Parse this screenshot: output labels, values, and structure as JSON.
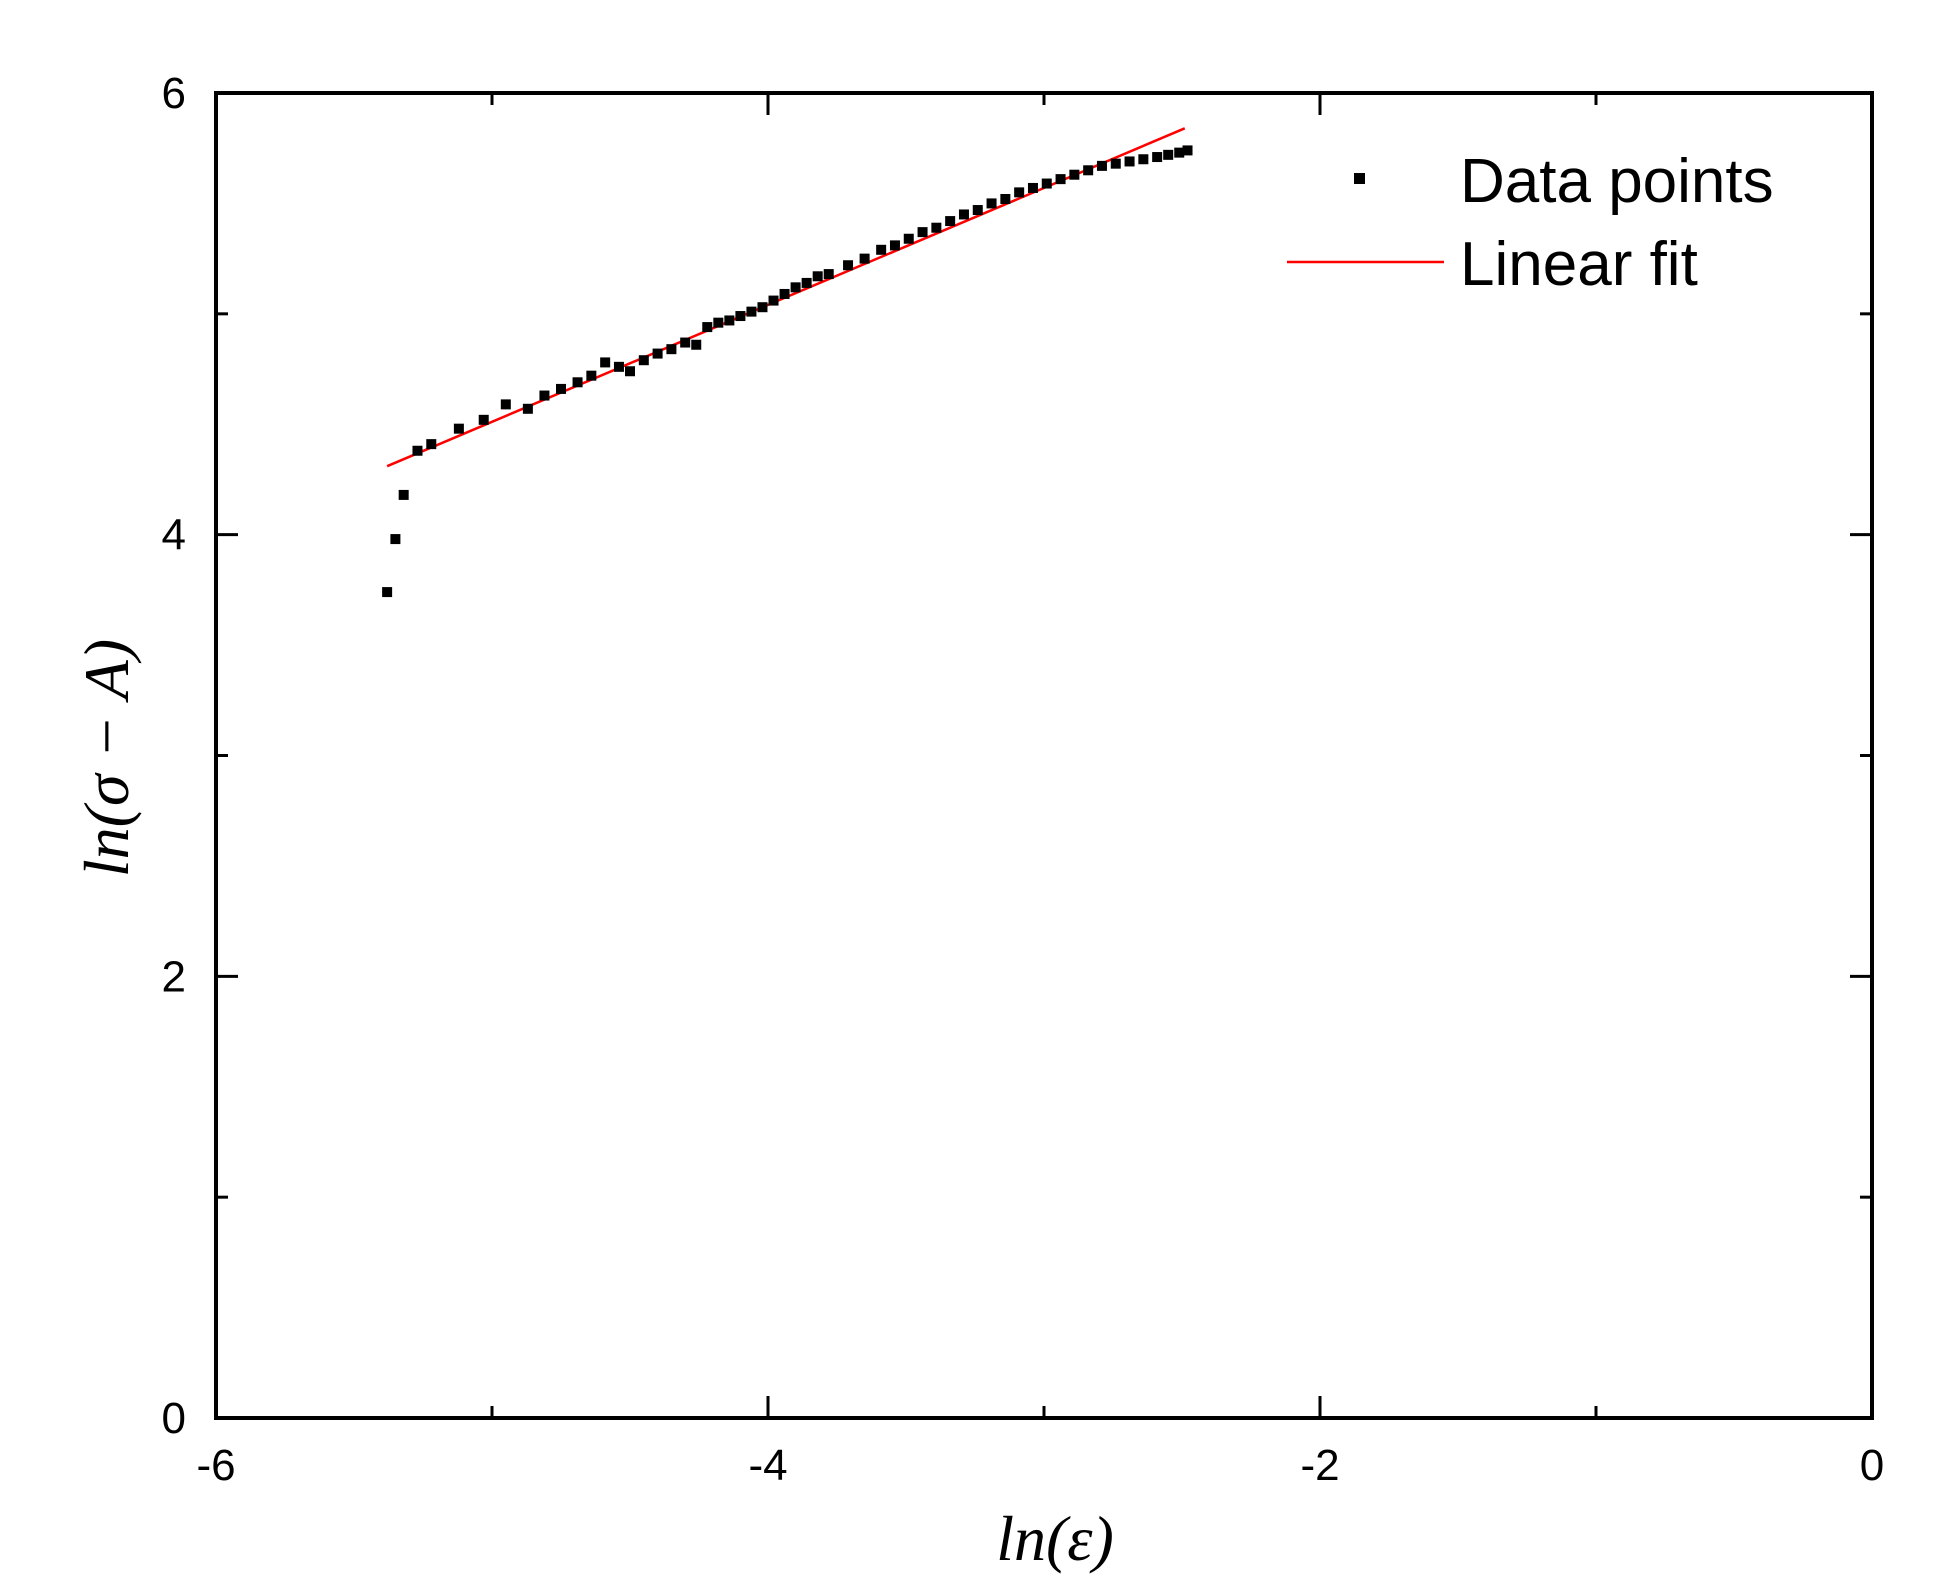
{
  "chart_data": {
    "type": "scatter",
    "xlabel": "ln(ε)",
    "ylabel": "ln(σ − A)",
    "xlim": [
      -6,
      0
    ],
    "ylim": [
      0,
      6
    ],
    "x_ticks": [
      -6,
      -4,
      -2,
      0
    ],
    "y_ticks": [
      0,
      2,
      4,
      6
    ],
    "x_tick_labels": [
      "-6",
      "-4",
      "-2",
      "0"
    ],
    "y_tick_labels": [
      "0",
      "2",
      "4",
      "6"
    ],
    "legend_position": "top-right",
    "grid": false,
    "series": [
      {
        "name": "Data points",
        "kind": "scatter",
        "marker": "square",
        "color": "#000000",
        "points": [
          [
            -5.38,
            3.74
          ],
          [
            -5.35,
            3.98
          ],
          [
            -5.32,
            4.18
          ],
          [
            -5.27,
            4.38
          ],
          [
            -5.22,
            4.41
          ],
          [
            -5.12,
            4.48
          ],
          [
            -5.03,
            4.52
          ],
          [
            -4.95,
            4.59
          ],
          [
            -4.87,
            4.57
          ],
          [
            -4.81,
            4.63
          ],
          [
            -4.75,
            4.66
          ],
          [
            -4.69,
            4.69
          ],
          [
            -4.64,
            4.72
          ],
          [
            -4.59,
            4.78
          ],
          [
            -4.54,
            4.76
          ],
          [
            -4.5,
            4.74
          ],
          [
            -4.45,
            4.79
          ],
          [
            -4.4,
            4.82
          ],
          [
            -4.35,
            4.84
          ],
          [
            -4.3,
            4.87
          ],
          [
            -4.26,
            4.86
          ],
          [
            -4.22,
            4.94
          ],
          [
            -4.18,
            4.96
          ],
          [
            -4.14,
            4.97
          ],
          [
            -4.1,
            4.99
          ],
          [
            -4.06,
            5.01
          ],
          [
            -4.02,
            5.03
          ],
          [
            -3.98,
            5.06
          ],
          [
            -3.94,
            5.09
          ],
          [
            -3.9,
            5.12
          ],
          [
            -3.86,
            5.14
          ],
          [
            -3.82,
            5.17
          ],
          [
            -3.78,
            5.18
          ],
          [
            -3.71,
            5.22
          ],
          [
            -3.65,
            5.25
          ],
          [
            -3.59,
            5.29
          ],
          [
            -3.54,
            5.31
          ],
          [
            -3.49,
            5.34
          ],
          [
            -3.44,
            5.37
          ],
          [
            -3.39,
            5.39
          ],
          [
            -3.34,
            5.42
          ],
          [
            -3.29,
            5.45
          ],
          [
            -3.24,
            5.47
          ],
          [
            -3.19,
            5.5
          ],
          [
            -3.14,
            5.52
          ],
          [
            -3.09,
            5.55
          ],
          [
            -3.04,
            5.57
          ],
          [
            -2.99,
            5.59
          ],
          [
            -2.94,
            5.61
          ],
          [
            -2.89,
            5.63
          ],
          [
            -2.84,
            5.65
          ],
          [
            -2.79,
            5.67
          ],
          [
            -2.74,
            5.68
          ],
          [
            -2.69,
            5.69
          ],
          [
            -2.64,
            5.7
          ],
          [
            -2.59,
            5.71
          ],
          [
            -2.55,
            5.72
          ],
          [
            -2.51,
            5.73
          ],
          [
            -2.48,
            5.74
          ]
        ]
      },
      {
        "name": "Linear fit",
        "kind": "line",
        "color": "#ff0000",
        "points": [
          [
            -5.38,
            4.31
          ],
          [
            -2.49,
            5.84
          ]
        ]
      }
    ]
  }
}
